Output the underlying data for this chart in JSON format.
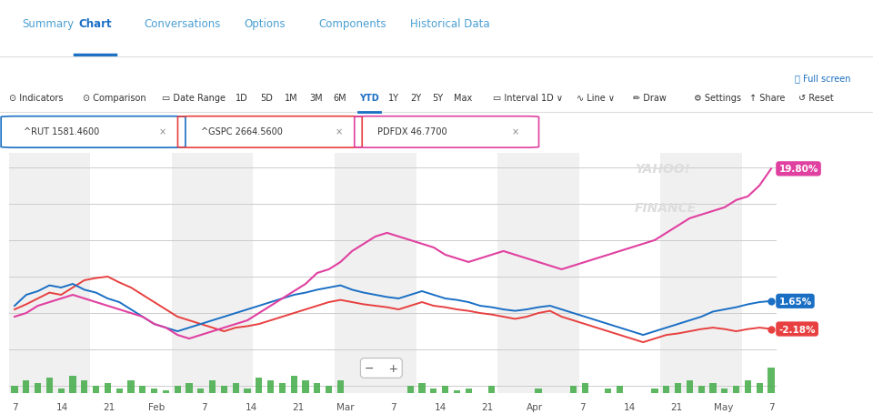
{
  "title_tabs": [
    "Summary",
    "Chart",
    "Conversations",
    "Options",
    "Components",
    "Historical Data"
  ],
  "active_tab": "Chart",
  "labels": {
    "rut": "^RUT 1581.4600",
    "gspc": "^GSPC 2664.5600",
    "pdfdx": "PDFDX 46.7700"
  },
  "label_colors": {
    "rut": "#1a6fc4",
    "gspc": "#e84040",
    "pdfdx": "#e040a0"
  },
  "end_labels": {
    "pdfdx_val": "19.80%",
    "rut_val": "1.65%",
    "gspc_val": "-2.18%"
  },
  "end_label_colors": {
    "pdfdx": "#e040a0",
    "rut": "#1a6fc4",
    "gspc": "#e84040"
  },
  "x_tick_labels": [
    "7",
    "14",
    "21",
    "Feb",
    "7",
    "14",
    "21",
    "Mar",
    "7",
    "14",
    "21",
    "Apr",
    "7",
    "14",
    "21",
    "May",
    "7"
  ],
  "y_range": [
    -11,
    22
  ],
  "background_color": "#ffffff",
  "plot_bg_light": "#f0f0f0",
  "plot_bg_dark": "#ffffff",
  "grid_color": "#cccccc",
  "rut_data": [
    1.0,
    2.5,
    3.0,
    3.8,
    3.5,
    4.0,
    3.2,
    2.8,
    2.0,
    1.5,
    0.5,
    -0.5,
    -1.5,
    -2.0,
    -2.5,
    -2.0,
    -1.5,
    -1.0,
    -0.5,
    0.0,
    0.5,
    1.0,
    1.5,
    2.0,
    2.5,
    2.8,
    3.2,
    3.5,
    3.8,
    3.2,
    2.8,
    2.5,
    2.2,
    2.0,
    2.5,
    3.0,
    2.5,
    2.0,
    1.8,
    1.5,
    1.0,
    0.8,
    0.5,
    0.3,
    0.5,
    0.8,
    1.0,
    0.5,
    0.0,
    -0.5,
    -1.0,
    -1.5,
    -2.0,
    -2.5,
    -3.0,
    -2.5,
    -2.0,
    -1.5,
    -1.0,
    -0.5,
    0.2,
    0.5,
    0.8,
    1.2,
    1.5,
    1.65
  ],
  "gspc_data": [
    0.5,
    1.2,
    2.0,
    2.8,
    2.5,
    3.5,
    4.5,
    4.8,
    5.0,
    4.2,
    3.5,
    2.5,
    1.5,
    0.5,
    -0.5,
    -1.0,
    -1.5,
    -2.0,
    -2.5,
    -2.0,
    -1.8,
    -1.5,
    -1.0,
    -0.5,
    0.0,
    0.5,
    1.0,
    1.5,
    1.8,
    1.5,
    1.2,
    1.0,
    0.8,
    0.5,
    1.0,
    1.5,
    1.0,
    0.8,
    0.5,
    0.3,
    0.0,
    -0.2,
    -0.5,
    -0.8,
    -0.5,
    0.0,
    0.3,
    -0.5,
    -1.0,
    -1.5,
    -2.0,
    -2.5,
    -3.0,
    -3.5,
    -4.0,
    -3.5,
    -3.0,
    -2.8,
    -2.5,
    -2.2,
    -2.0,
    -2.2,
    -2.5,
    -2.2,
    -2.0,
    -2.18
  ],
  "pdfdx_data": [
    -0.5,
    0.0,
    1.0,
    1.5,
    2.0,
    2.5,
    2.0,
    1.5,
    1.0,
    0.5,
    0.0,
    -0.5,
    -1.5,
    -2.0,
    -3.0,
    -3.5,
    -3.0,
    -2.5,
    -2.0,
    -1.5,
    -1.0,
    0.0,
    1.0,
    2.0,
    3.0,
    4.0,
    5.5,
    6.0,
    7.0,
    8.5,
    9.5,
    10.5,
    11.0,
    10.5,
    10.0,
    9.5,
    9.0,
    8.0,
    7.5,
    7.0,
    7.5,
    8.0,
    8.5,
    8.0,
    7.5,
    7.0,
    6.5,
    6.0,
    6.5,
    7.0,
    7.5,
    8.0,
    8.5,
    9.0,
    9.5,
    10.0,
    11.0,
    12.0,
    13.0,
    13.5,
    14.0,
    14.5,
    15.5,
    16.0,
    17.5,
    19.8
  ],
  "bar_data_pos": [
    0.3,
    0.5,
    0.4,
    0.6,
    0.2,
    0.7,
    0.5,
    0.3,
    0.4,
    0.2,
    0.5,
    0.3,
    0.2,
    0.1,
    0.3,
    0.4,
    0.2,
    0.5,
    0.3,
    0.4,
    0.2,
    0.6,
    0.5,
    0.4,
    0.7,
    0.5,
    0.4,
    0.3,
    0.5,
    0.0,
    0.0,
    0.0,
    0.0,
    0.0,
    0.3,
    0.4,
    0.2,
    0.3,
    0.1,
    0.2,
    0.0,
    0.3,
    0.0,
    0.0,
    0.0,
    0.2,
    0.0,
    0.0,
    0.3,
    0.4,
    0.0,
    0.2,
    0.3,
    0.0,
    0.0,
    0.2,
    0.3,
    0.4,
    0.5,
    0.3,
    0.4,
    0.2,
    0.3,
    0.5,
    0.4,
    1.0
  ],
  "bar_data_neg": [
    0.2,
    0.3,
    0.1,
    0.2,
    0.4,
    0.1,
    0.3,
    0.2,
    0.1,
    0.3,
    0.2,
    0.1,
    0.3,
    0.4,
    0.2,
    0.1,
    0.3,
    0.1,
    0.2,
    0.3,
    0.4,
    0.1,
    0.2,
    0.1,
    0.3,
    0.2,
    0.1,
    0.2,
    0.1,
    0.5,
    0.4,
    0.3,
    0.5,
    0.4,
    0.1,
    0.2,
    0.3,
    0.1,
    0.2,
    0.1,
    0.3,
    0.1,
    0.4,
    0.3,
    0.2,
    0.1,
    0.3,
    0.4,
    0.1,
    0.2,
    0.3,
    0.1,
    0.2,
    0.3,
    0.4,
    0.1,
    0.2,
    0.1,
    0.2,
    0.3,
    0.1,
    0.2,
    0.1,
    0.2,
    0.3,
    0.2
  ],
  "line_colors": {
    "rut": "#1a6fc4",
    "gspc": "#e84040",
    "pdfdx": "#e040a0"
  }
}
